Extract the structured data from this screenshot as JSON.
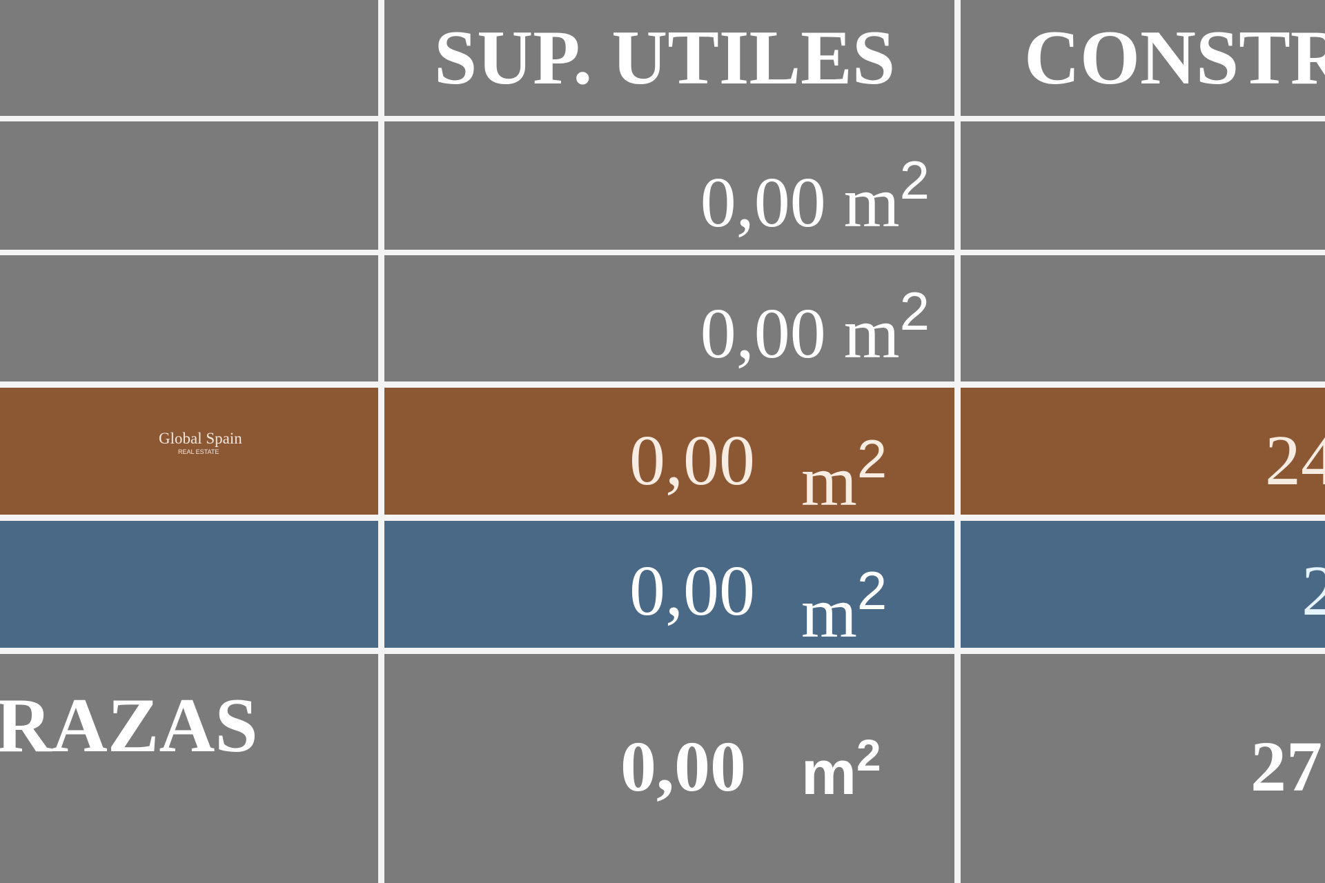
{
  "header": {
    "col2": "SUP. UTILES",
    "col3": "CONSTR"
  },
  "rows": [
    {
      "label": "",
      "util_num": "0,00",
      "util_unit": "m",
      "sup": "2",
      "constr": ""
    },
    {
      "label": "",
      "util_num": "0,00",
      "util_unit": "m",
      "sup": "2",
      "constr": ""
    },
    {
      "label": "",
      "util_num": "0,00",
      "util_unit": "m",
      "sup": "2",
      "constr": "24"
    },
    {
      "label": "",
      "util_num": "0,00",
      "util_unit": "m",
      "sup": "2",
      "constr": "2"
    },
    {
      "label": "RAZAS",
      "util_num": "0,00",
      "util_unit": "m",
      "sup": "2",
      "constr": "27"
    }
  ],
  "watermark": {
    "name": "Global Spain",
    "sub": "REAL ESTATE"
  },
  "colors": {
    "grey": "#7b7b7b",
    "brown": "#8c5733",
    "blue": "#4a6986",
    "divider": "#f4f4f4"
  }
}
